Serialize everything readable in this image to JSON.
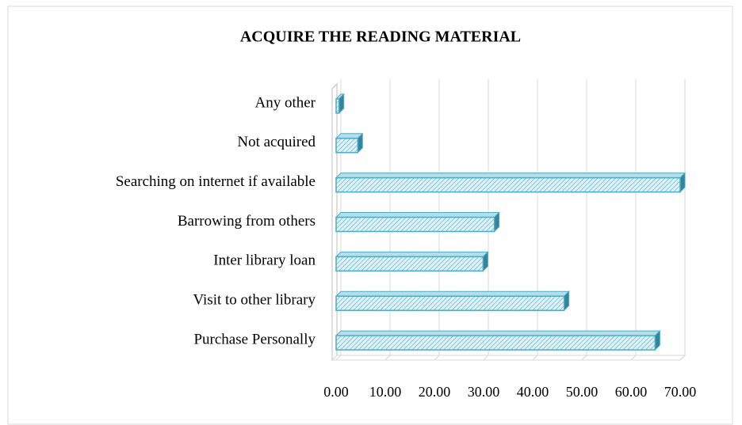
{
  "chart_data": {
    "type": "bar3d_horizontal",
    "title": "ACQUIRE THE READING MATERIAL",
    "categories": [
      "Purchase Personally",
      "Visit to other library",
      "Inter library loan",
      "Barrowing from others",
      "Searching on internet if available",
      "Not acquired",
      "Any other"
    ],
    "values": [
      64.9,
      46.4,
      29.9,
      32.2,
      70.0,
      4.4,
      0.6
    ],
    "color": "#4bacc6",
    "xlim": [
      0,
      70
    ],
    "xticks": [
      {
        "value": 0,
        "label": "0.00"
      },
      {
        "value": 10,
        "label": "10.00"
      },
      {
        "value": 20,
        "label": "20.00"
      },
      {
        "value": 30,
        "label": "30.00"
      },
      {
        "value": 40,
        "label": "40.00"
      },
      {
        "value": 50,
        "label": "50.00"
      },
      {
        "value": 60,
        "label": "60.00"
      },
      {
        "value": 70,
        "label": "70.00"
      }
    ],
    "grid": true
  }
}
